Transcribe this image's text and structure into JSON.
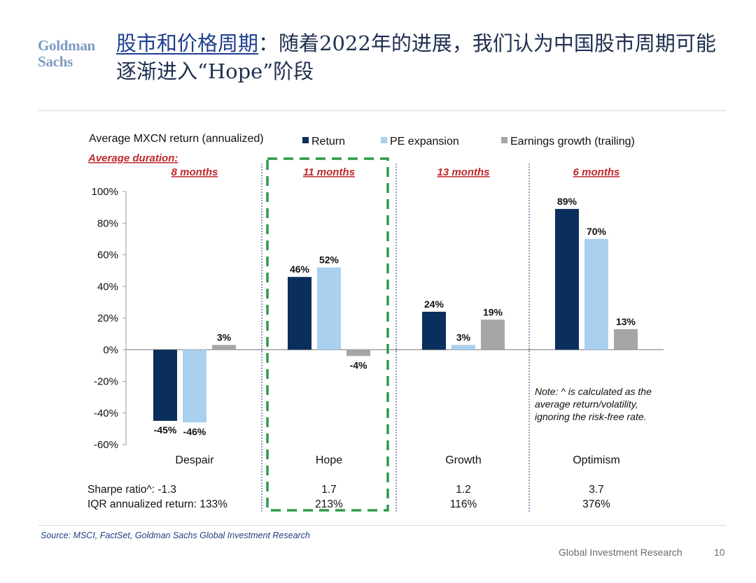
{
  "logo": {
    "line1": "Goldman",
    "line2": "Sachs"
  },
  "title": {
    "highlight": "股市和价格周期",
    "colon": "：",
    "rest": "随着2022年的进展，我们认为中国股市周期可能逐渐进入“Hope”阶段"
  },
  "note": "Note: ^ is calculated as the average return/volatility, ignoring the risk-free rate.",
  "source": "Source: MSCI, FactSet, Goldman Sachs Global Investment Research",
  "footer": {
    "text": "Global Investment Research",
    "page": "10"
  },
  "stats": {
    "sharpe_label": "Sharpe ratio^: -1.3",
    "iqr_label": "IQR annualized return: 133%",
    "sharpe": [
      "1.7",
      "1.2",
      "3.7"
    ],
    "iqr": [
      "213%",
      "116%",
      "376%"
    ]
  },
  "colors": {
    "return": "#0b2f5c",
    "pe": "#a9d0ee",
    "earnings": "#a6a6a6",
    "duration": "#c0282d",
    "highlight_box": "#2e9a4a",
    "divider": "#1f3f7f"
  },
  "chart_data": {
    "type": "bar",
    "title": "Average MXCN return (annualized)",
    "duration_label": "Average duration:",
    "categories": [
      "Despair",
      "Hope",
      "Growth",
      "Optimism"
    ],
    "durations": [
      "8 months",
      "11 months",
      "13 months",
      "6 months"
    ],
    "series": [
      {
        "name": "Return",
        "values": [
          -45,
          46,
          24,
          89
        ],
        "labels": [
          "-45%",
          "46%",
          "24%",
          "89%"
        ]
      },
      {
        "name": "PE expansion",
        "values": [
          -46,
          52,
          3,
          70
        ],
        "labels": [
          "-46%",
          "52%",
          "3%",
          "70%"
        ]
      },
      {
        "name": "Earnings growth (trailing)",
        "values": [
          3,
          -4,
          19,
          13
        ],
        "labels": [
          "3%",
          "-4%",
          "19%",
          "13%"
        ]
      }
    ],
    "yticks": [
      100,
      80,
      60,
      40,
      20,
      0,
      -20,
      -40,
      -60
    ],
    "ytick_labels": [
      "100%",
      "80%",
      "60%",
      "40%",
      "20%",
      "0%",
      "-20%",
      "-40%",
      "-60%"
    ],
    "ylim": [
      -60,
      100
    ],
    "highlighted_category": "Hope"
  }
}
